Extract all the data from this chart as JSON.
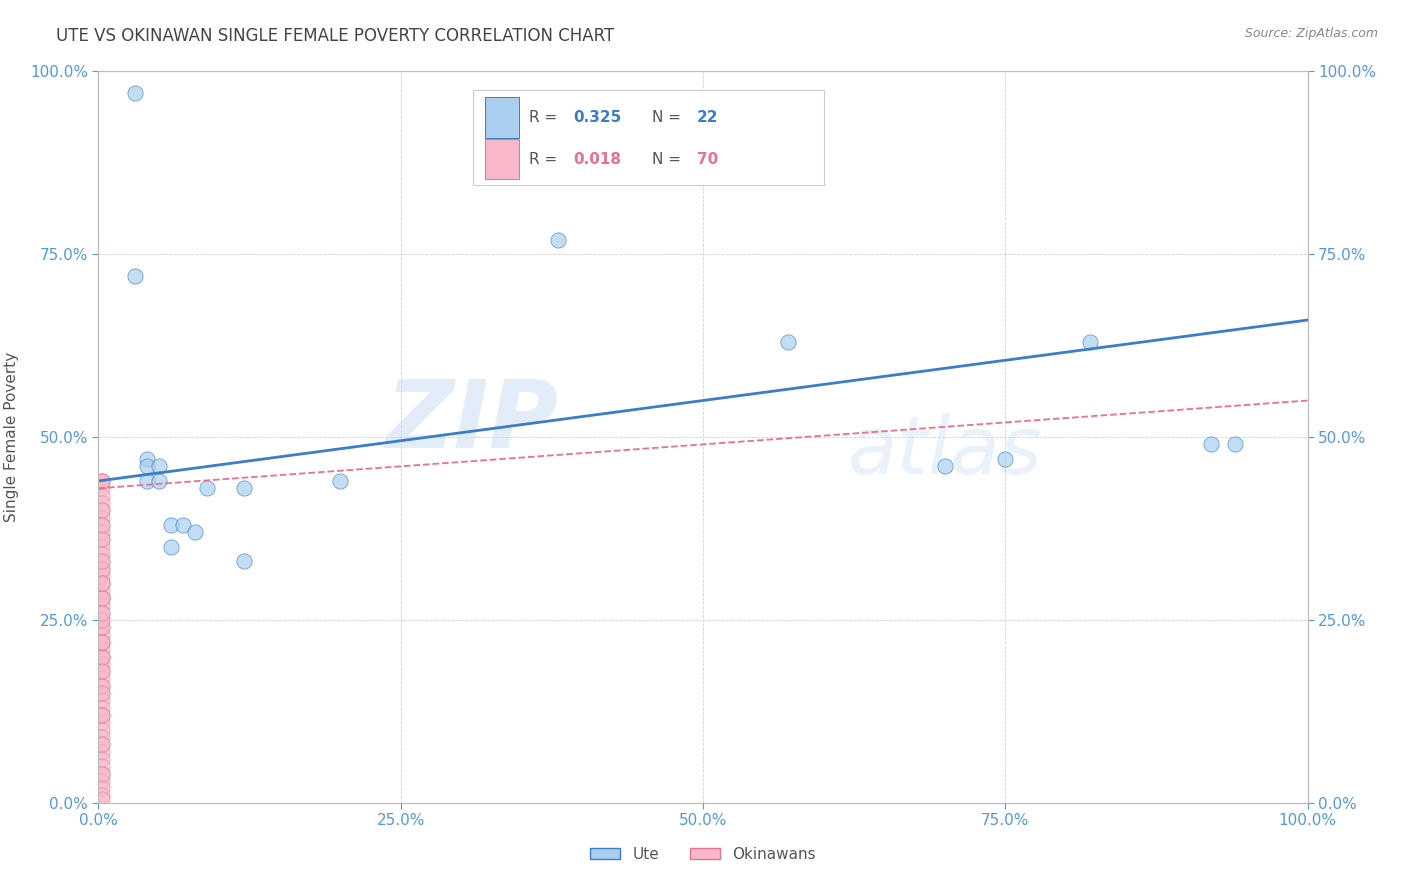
{
  "title": "UTE VS OKINAWAN SINGLE FEMALE POVERTY CORRELATION CHART",
  "source": "Source: ZipAtlas.com",
  "ylabel": "Single Female Poverty",
  "ytick_values": [
    0.0,
    0.25,
    0.5,
    0.75,
    1.0
  ],
  "xtick_values": [
    0.0,
    0.25,
    0.5,
    0.75,
    1.0
  ],
  "legend_ute_R": "0.325",
  "legend_ute_N": "22",
  "legend_okinawan_R": "0.018",
  "legend_okinawan_N": "70",
  "watermark_zip": "ZIP",
  "watermark_atlas": "atlas",
  "ute_color": "#aacfee",
  "okinawan_color": "#f8b8c8",
  "ute_line_color": "#3a7dc9",
  "okinawan_line_color": "#e87090",
  "background_color": "#ffffff",
  "grid_color": "#d0d0d0",
  "title_color": "#444444",
  "axis_label_color": "#5599dd",
  "ute_x": [
    0.03,
    0.03,
    0.04,
    0.04,
    0.04,
    0.05,
    0.05,
    0.06,
    0.06,
    0.07,
    0.08,
    0.09,
    0.12,
    0.12,
    0.2,
    0.38,
    0.57,
    0.7,
    0.75,
    0.82,
    0.92,
    0.94
  ],
  "ute_y": [
    0.97,
    0.72,
    0.47,
    0.46,
    0.44,
    0.46,
    0.44,
    0.38,
    0.35,
    0.38,
    0.37,
    0.43,
    0.43,
    0.33,
    0.44,
    0.77,
    0.63,
    0.46,
    0.47,
    0.63,
    0.49,
    0.49
  ],
  "okinawan_x": [
    0.003,
    0.003,
    0.003,
    0.003,
    0.003,
    0.003,
    0.003,
    0.003,
    0.003,
    0.003,
    0.003,
    0.003,
    0.003,
    0.003,
    0.003,
    0.003,
    0.003,
    0.003,
    0.003,
    0.003,
    0.003,
    0.003,
    0.003,
    0.003,
    0.003,
    0.003,
    0.003,
    0.003,
    0.003,
    0.003,
    0.003,
    0.003,
    0.003,
    0.003,
    0.003,
    0.003,
    0.003,
    0.003,
    0.003,
    0.003,
    0.003,
    0.003,
    0.003,
    0.003,
    0.003,
    0.003,
    0.003,
    0.003,
    0.003,
    0.003,
    0.003,
    0.003,
    0.003,
    0.003,
    0.003,
    0.003,
    0.003,
    0.003,
    0.003,
    0.003,
    0.003,
    0.003,
    0.003,
    0.003,
    0.003,
    0.003,
    0.003,
    0.003,
    0.003,
    0.003
  ],
  "okinawan_y": [
    0.44,
    0.43,
    0.42,
    0.41,
    0.4,
    0.39,
    0.38,
    0.37,
    0.36,
    0.35,
    0.34,
    0.33,
    0.32,
    0.31,
    0.3,
    0.29,
    0.28,
    0.27,
    0.26,
    0.25,
    0.24,
    0.23,
    0.22,
    0.21,
    0.2,
    0.19,
    0.18,
    0.17,
    0.16,
    0.15,
    0.14,
    0.13,
    0.12,
    0.11,
    0.1,
    0.09,
    0.08,
    0.07,
    0.06,
    0.05,
    0.04,
    0.03,
    0.02,
    0.01,
    0.005,
    0.44,
    0.4,
    0.36,
    0.32,
    0.28,
    0.24,
    0.2,
    0.16,
    0.12,
    0.08,
    0.04,
    0.44,
    0.38,
    0.3,
    0.25,
    0.2,
    0.15,
    0.22,
    0.28,
    0.18,
    0.12,
    0.3,
    0.26,
    0.33,
    0.22
  ],
  "ute_line_x0": 0.0,
  "ute_line_y0": 0.44,
  "ute_line_x1": 1.0,
  "ute_line_y1": 0.66,
  "okin_line_x0": 0.0,
  "okin_line_y0": 0.43,
  "okin_line_x1": 1.0,
  "okin_line_y1": 0.55
}
